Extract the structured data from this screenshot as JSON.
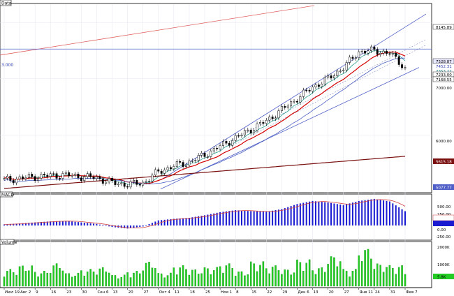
{
  "panes": {
    "price": {
      "title": "Data",
      "level_label": "3.000"
    },
    "macd": {
      "title": "MACD"
    },
    "volume": {
      "title": "Volume"
    }
  },
  "price_axis": {
    "labels": [
      "8145.89",
      "7528.87",
      "7452.31",
      "7353.27",
      "7233.00",
      "7168.55",
      "7000.00",
      "6000.00",
      "5615.18",
      "5077.77"
    ]
  },
  "macd_axis": {
    "labels": [
      "500.00",
      "250.00",
      "0.00",
      "-250.00"
    ]
  },
  "volume_axis": {
    "labels": [
      "2000K",
      "1000K",
      "5.8K"
    ]
  },
  "time_axis": {
    "labels": [
      "Июл 19",
      "Авг 2",
      "9",
      "16",
      "23",
      "30",
      "Сен 6",
      "13",
      "20",
      "27",
      "Окт 4",
      "11",
      "18",
      "25",
      "Ноя 1",
      "8",
      "15",
      "22",
      "29",
      "Дек 6",
      "13",
      "20",
      "27",
      "Янв 11",
      "24",
      "31",
      "Фев 7"
    ]
  },
  "colors": {
    "candle": "#000000",
    "ma_red": "#d40000",
    "ma_teal": "#2a9d8f",
    "ma_blue": "#4a5fc1",
    "ma_dark": "#7a1010",
    "channel": "#5060c8",
    "trend_red": "#e06060",
    "macd_bar": "#1a1ad0",
    "macd_signal": "#d04040",
    "volume_bar": "#22cc22",
    "grid": "#e6e6ee"
  },
  "chart_data": [
    {
      "type": "candlestick",
      "title": "Data",
      "x": [
        "Июл 19",
        "Авг 2",
        "9",
        "16",
        "23",
        "30",
        "Сен 6",
        "13",
        "20",
        "27",
        "Окт 4",
        "11",
        "18",
        "25",
        "Ноя 1",
        "8",
        "15",
        "22",
        "29",
        "Дек 6",
        "13",
        "20",
        "27",
        "Янв 11",
        "24",
        "31",
        "Фев 7"
      ],
      "close": [
        5200,
        5230,
        5260,
        5280,
        5290,
        5260,
        5240,
        5150,
        5120,
        5150,
        5350,
        5450,
        5520,
        5650,
        5800,
        5950,
        6100,
        6250,
        6450,
        6650,
        6850,
        7000,
        7200,
        7480,
        7500,
        7450,
        7200
      ],
      "ylim": [
        5000,
        8300
      ]
    },
    {
      "type": "bar",
      "title": "MACD",
      "values": [
        20,
        40,
        60,
        80,
        90,
        60,
        30,
        -30,
        -60,
        -20,
        100,
        130,
        150,
        200,
        260,
        300,
        280,
        270,
        320,
        420,
        480,
        450,
        400,
        480,
        520,
        470,
        280
      ],
      "ylim": [
        -260,
        560
      ]
    },
    {
      "type": "bar",
      "title": "Volume",
      "values": [
        900,
        1100,
        800,
        1200,
        700,
        900,
        1000,
        600,
        800,
        1300,
        700,
        1100,
        900,
        1000,
        1200,
        800,
        1300,
        1100,
        900,
        1400,
        1000,
        1600,
        900,
        2000,
        1200,
        1100,
        800
      ],
      "ylim": [
        0,
        2200
      ]
    }
  ]
}
